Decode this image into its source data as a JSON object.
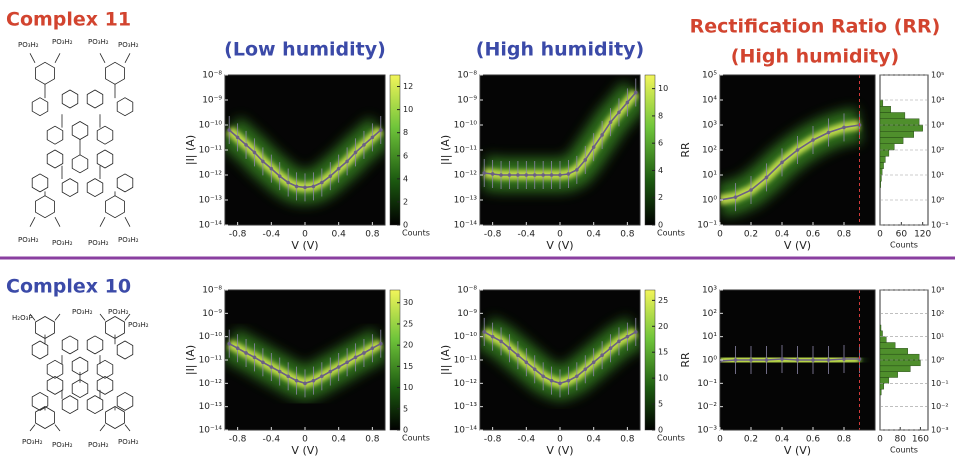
{
  "complexes": [
    {
      "label": "Complex 11",
      "substituents": [
        "PO₃H₂",
        "PO₃H₂",
        "PO₃H₂",
        "PO₃H₂",
        "PO₃H₂",
        "PO₃H₂",
        "PO₃H₂",
        "PO₃H₂"
      ]
    },
    {
      "label": "Complex 10",
      "substituents": [
        "H₂O₃P",
        "PO₃H₂",
        "PO₃H₂",
        "PO₃H₂",
        "PO₃H₂",
        "PO₃H₂",
        "PO₃H₂",
        "PO₃H₂"
      ]
    }
  ],
  "chart_data": [
    {
      "type": "line",
      "title": "(Low humidity)",
      "xlabel": "V (V)",
      "ylabel": "|I| (A)",
      "log_y": true,
      "x": [
        -0.9,
        -0.8,
        -0.7,
        -0.6,
        -0.5,
        -0.4,
        -0.3,
        -0.2,
        -0.1,
        0,
        0.1,
        0.2,
        0.3,
        0.4,
        0.5,
        0.6,
        0.7,
        0.8,
        0.9
      ],
      "values": [
        6.3e-11,
        3.2e-11,
        1.6e-11,
        8e-12,
        3.5e-12,
        1.8e-12,
        9e-13,
        5e-13,
        3.5e-13,
        3.2e-13,
        3.5e-13,
        5e-13,
        9e-13,
        1.8e-12,
        3.5e-12,
        8e-12,
        1.6e-11,
        3.2e-11,
        6.3e-11
      ],
      "color": "#6b5f86",
      "xlim": [
        -0.95,
        0.95
      ],
      "xticks": [
        -0.8,
        -0.4,
        0,
        0.4,
        0.8
      ],
      "ylim": [
        1e-14,
        1e-08
      ],
      "yticks": [
        {
          "value": 1e-08,
          "label": "10⁻⁸"
        },
        {
          "value": 1e-09,
          "label": "10⁻⁹"
        },
        {
          "value": 1e-10,
          "label": "10⁻¹⁰"
        },
        {
          "value": 1e-11,
          "label": "10⁻¹¹"
        },
        {
          "value": 1e-12,
          "label": "10⁻¹²"
        },
        {
          "value": 1e-13,
          "label": "10⁻¹³"
        },
        {
          "value": 1e-14,
          "label": "10⁻¹⁴"
        }
      ],
      "colorbar": {
        "label": "Counts",
        "lim": [
          0,
          13
        ],
        "ticks": [
          0,
          2,
          4,
          6,
          8,
          10,
          12
        ]
      }
    },
    {
      "type": "line",
      "title": "(High humidity)",
      "xlabel": "V (V)",
      "ylabel": "|I| (A)",
      "log_y": true,
      "x": [
        -0.9,
        -0.8,
        -0.7,
        -0.6,
        -0.5,
        -0.4,
        -0.3,
        -0.2,
        -0.1,
        0,
        0.1,
        0.2,
        0.3,
        0.4,
        0.5,
        0.6,
        0.7,
        0.8,
        0.9
      ],
      "values": [
        1.2e-12,
        1.1e-12,
        1e-12,
        1e-12,
        1e-12,
        1e-12,
        1e-12,
        1e-12,
        1e-12,
        1e-12,
        1.1e-12,
        1.6e-12,
        4e-12,
        1.3e-11,
        4e-11,
        1.3e-10,
        3.2e-10,
        8e-10,
        2e-09
      ],
      "color": "#6b5f86",
      "xlim": [
        -0.95,
        0.95
      ],
      "xticks": [
        -0.8,
        -0.4,
        0,
        0.4,
        0.8
      ],
      "ylim": [
        1e-14,
        1e-08
      ],
      "yticks": [
        {
          "value": 1e-08,
          "label": "10⁻⁸"
        },
        {
          "value": 1e-09,
          "label": "10⁻⁹"
        },
        {
          "value": 1e-10,
          "label": "10⁻¹⁰"
        },
        {
          "value": 1e-11,
          "label": "10⁻¹¹"
        },
        {
          "value": 1e-12,
          "label": "10⁻¹²"
        },
        {
          "value": 1e-13,
          "label": "10⁻¹³"
        },
        {
          "value": 1e-14,
          "label": "10⁻¹⁴"
        }
      ],
      "colorbar": {
        "label": "Counts",
        "lim": [
          0,
          11
        ],
        "ticks": [
          0,
          2,
          4,
          6,
          8,
          10
        ]
      }
    },
    {
      "type": "line",
      "title": "Rectification Ratio (RR)",
      "subtitle": "(High humidity)",
      "xlabel": "V (V)",
      "ylabel": "RR",
      "log_y": true,
      "x": [
        0,
        0.1,
        0.2,
        0.3,
        0.4,
        0.5,
        0.6,
        0.7,
        0.8,
        0.9
      ],
      "values": [
        1,
        1.3,
        2.5,
        8,
        32,
        100,
        250,
        500,
        800,
        1000
      ],
      "color": "#6b5f86",
      "xlim": [
        0,
        1
      ],
      "xticks": [
        0,
        0.2,
        0.4,
        0.6,
        0.8
      ],
      "vline": 0.9,
      "ylim": [
        0.1,
        100000
      ],
      "yticks": [
        {
          "value": 0.1,
          "label": "10⁻¹"
        },
        {
          "value": 1,
          "label": "10⁰"
        },
        {
          "value": 10,
          "label": "10¹"
        },
        {
          "value": 100,
          "label": "10²"
        },
        {
          "value": 1000,
          "label": "10³"
        },
        {
          "value": 10000,
          "label": "10⁴"
        },
        {
          "value": 100000,
          "label": "10⁵"
        }
      ],
      "histogram": {
        "xlabel": "Counts",
        "xlim": [
          0,
          135
        ],
        "xticks": [
          0,
          60,
          120
        ],
        "bins": [
          3.16,
          5.62,
          10,
          17.8,
          31.6,
          56.2,
          100,
          178,
          316,
          562,
          1000,
          1778,
          3162,
          5623,
          10000
        ],
        "counts": [
          2,
          4,
          6,
          10,
          15,
          25,
          40,
          65,
          95,
          120,
          110,
          70,
          30,
          8
        ]
      }
    },
    {
      "type": "line",
      "xlabel": "V (V)",
      "ylabel": "|I| (A)",
      "log_y": true,
      "x": [
        -0.9,
        -0.8,
        -0.7,
        -0.6,
        -0.5,
        -0.4,
        -0.3,
        -0.2,
        -0.1,
        0,
        0.1,
        0.2,
        0.3,
        0.4,
        0.5,
        0.6,
        0.7,
        0.8,
        0.9
      ],
      "values": [
        5e-11,
        3.2e-11,
        2e-11,
        1.3e-11,
        8e-12,
        5e-12,
        3.2e-12,
        2e-12,
        1.3e-12,
        1e-12,
        1.3e-12,
        2e-12,
        3.2e-12,
        5e-12,
        8e-12,
        1.3e-11,
        2e-11,
        3.2e-11,
        5e-11
      ],
      "color": "#6b5f86",
      "xlim": [
        -0.95,
        0.95
      ],
      "xticks": [
        -0.8,
        -0.4,
        0,
        0.4,
        0.8
      ],
      "ylim": [
        1e-14,
        1e-08
      ],
      "yticks": [
        {
          "value": 1e-08,
          "label": "10⁻⁸"
        },
        {
          "value": 1e-09,
          "label": "10⁻⁹"
        },
        {
          "value": 1e-10,
          "label": "10⁻¹⁰"
        },
        {
          "value": 1e-11,
          "label": "10⁻¹¹"
        },
        {
          "value": 1e-12,
          "label": "10⁻¹²"
        },
        {
          "value": 1e-13,
          "label": "10⁻¹³"
        },
        {
          "value": 1e-14,
          "label": "10⁻¹⁴"
        }
      ],
      "colorbar": {
        "label": "Counts",
        "lim": [
          0,
          33
        ],
        "ticks": [
          0,
          5,
          10,
          15,
          20,
          25,
          30
        ]
      }
    },
    {
      "type": "line",
      "xlabel": "V (V)",
      "ylabel": "|I| (A)",
      "log_y": true,
      "x": [
        -0.9,
        -0.8,
        -0.7,
        -0.6,
        -0.5,
        -0.4,
        -0.3,
        -0.2,
        -0.1,
        0,
        0.1,
        0.2,
        0.3,
        0.4,
        0.5,
        0.6,
        0.7,
        0.8,
        0.9
      ],
      "values": [
        1.6e-10,
        1e-10,
        6.3e-11,
        3.2e-11,
        1.6e-11,
        8e-12,
        4e-12,
        2e-12,
        1.3e-12,
        1e-12,
        1.3e-12,
        2e-12,
        4e-12,
        8e-12,
        1.6e-11,
        3.2e-11,
        6.3e-11,
        1e-10,
        1.6e-10
      ],
      "color": "#6b5f86",
      "xlim": [
        -0.95,
        0.95
      ],
      "xticks": [
        -0.8,
        -0.4,
        0,
        0.4,
        0.8
      ],
      "ylim": [
        1e-14,
        1e-08
      ],
      "yticks": [
        {
          "value": 1e-08,
          "label": "10⁻⁸"
        },
        {
          "value": 1e-09,
          "label": "10⁻⁹"
        },
        {
          "value": 1e-10,
          "label": "10⁻¹⁰"
        },
        {
          "value": 1e-11,
          "label": "10⁻¹¹"
        },
        {
          "value": 1e-12,
          "label": "10⁻¹²"
        },
        {
          "value": 1e-13,
          "label": "10⁻¹³"
        },
        {
          "value": 1e-14,
          "label": "10⁻¹⁴"
        }
      ],
      "colorbar": {
        "label": "Counts",
        "lim": [
          0,
          27
        ],
        "ticks": [
          0,
          5,
          10,
          15,
          20,
          25
        ]
      }
    },
    {
      "type": "line",
      "xlabel": "V (V)",
      "ylabel": "RR",
      "log_y": true,
      "x": [
        0,
        0.1,
        0.2,
        0.3,
        0.4,
        0.5,
        0.6,
        0.7,
        0.8,
        0.9
      ],
      "values": [
        0.9,
        1,
        1,
        1,
        1.1,
        1,
        1,
        1,
        1.1,
        1.1
      ],
      "color": "#6b5f86",
      "xlim": [
        0,
        1
      ],
      "xticks": [
        0,
        0.2,
        0.4,
        0.6,
        0.8
      ],
      "vline": 0.9,
      "ylim": [
        0.001,
        1000
      ],
      "yticks": [
        {
          "value": 0.001,
          "label": "10⁻³"
        },
        {
          "value": 0.01,
          "label": "10⁻²"
        },
        {
          "value": 0.1,
          "label": "10⁻¹"
        },
        {
          "value": 1,
          "label": "10⁰"
        },
        {
          "value": 10,
          "label": "10¹"
        },
        {
          "value": 100,
          "label": "10²"
        },
        {
          "value": 1000,
          "label": "10³"
        }
      ],
      "histogram": {
        "xlabel": "Counts",
        "xlim": [
          0,
          190
        ],
        "xticks": [
          0,
          80,
          160
        ],
        "bins": [
          0.0316,
          0.0562,
          0.1,
          0.178,
          0.316,
          0.562,
          1,
          1.78,
          3.16,
          5.62,
          10,
          17.8,
          31.6
        ],
        "counts": [
          5,
          15,
          35,
          70,
          120,
          160,
          155,
          110,
          60,
          25,
          10,
          4
        ]
      }
    }
  ]
}
